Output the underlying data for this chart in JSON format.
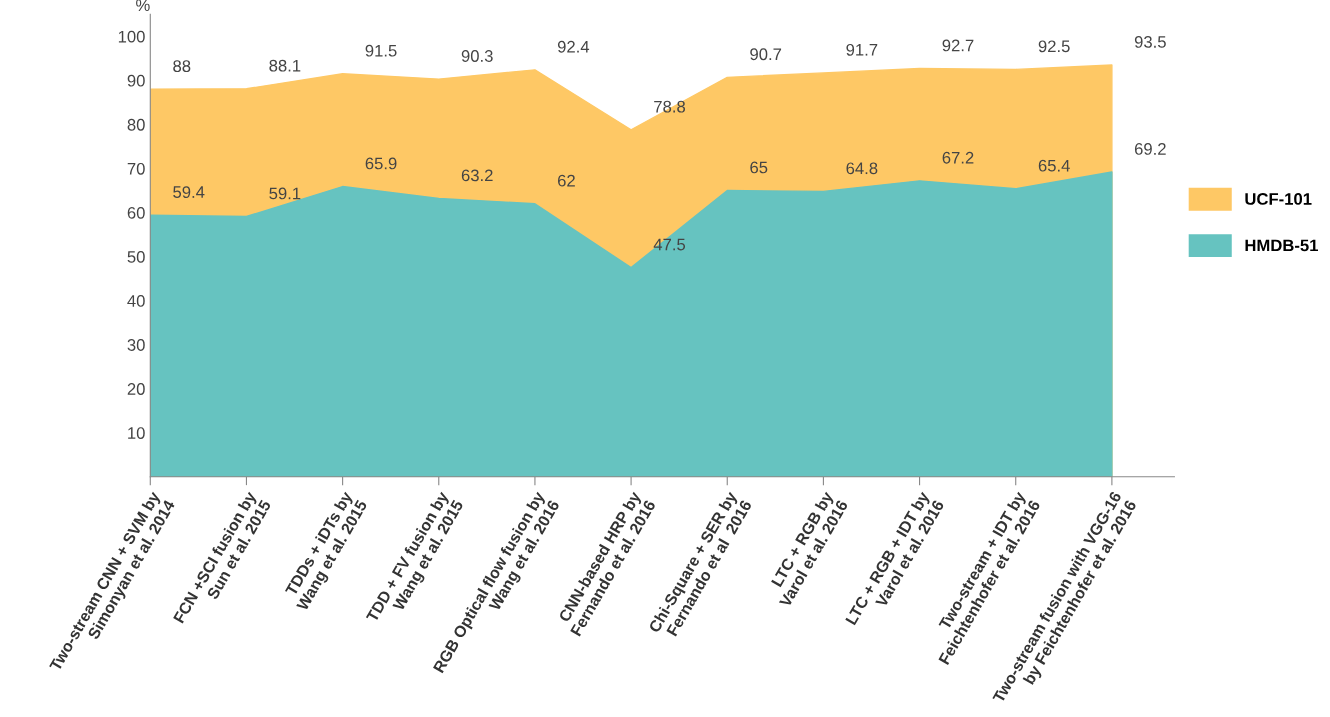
{
  "chart_data": {
    "type": "area",
    "ylabel": "%",
    "categories": [
      "Two-stream CNN + SVM by\nSimonyan et al. 2014",
      "FCN +SCI fusion by\nSun et al. 2015",
      "TDDs + iDTs by\nWang et al. 2015",
      "TDD + FV fusion by\nWang et al. 2015",
      "RGB Optical flow fusion by\nWang et al. 2016",
      "CNN-based HRP by\nFernando et al. 2016",
      "Chi-Square + SER by\nFernando et al  2016",
      "LTC + RGB by\nVarol et al. 2016",
      "LTC + RGB + IDT by\nVarol et al. 2016",
      "Two-stream + IDT by\nFeichtenhofer et al. 2016",
      "Two-stream fusion with VGG-16\nby Feichtenhofer et al. 2016"
    ],
    "series": [
      {
        "name": "UCF-101",
        "color": "#fec865",
        "values": [
          88,
          88.1,
          91.5,
          90.3,
          92.4,
          78.8,
          90.7,
          91.7,
          92.7,
          92.5,
          93.5
        ]
      },
      {
        "name": "HMDB-51",
        "color": "#66c3c0",
        "values": [
          59.4,
          59.1,
          65.9,
          63.2,
          62,
          47.5,
          65,
          64.8,
          67.2,
          65.4,
          69.2
        ]
      }
    ],
    "ylim": [
      0,
      105
    ],
    "yticks": [
      10,
      20,
      30,
      40,
      50,
      60,
      70,
      80,
      90,
      100
    ],
    "data_labels": true,
    "legend": "right"
  }
}
